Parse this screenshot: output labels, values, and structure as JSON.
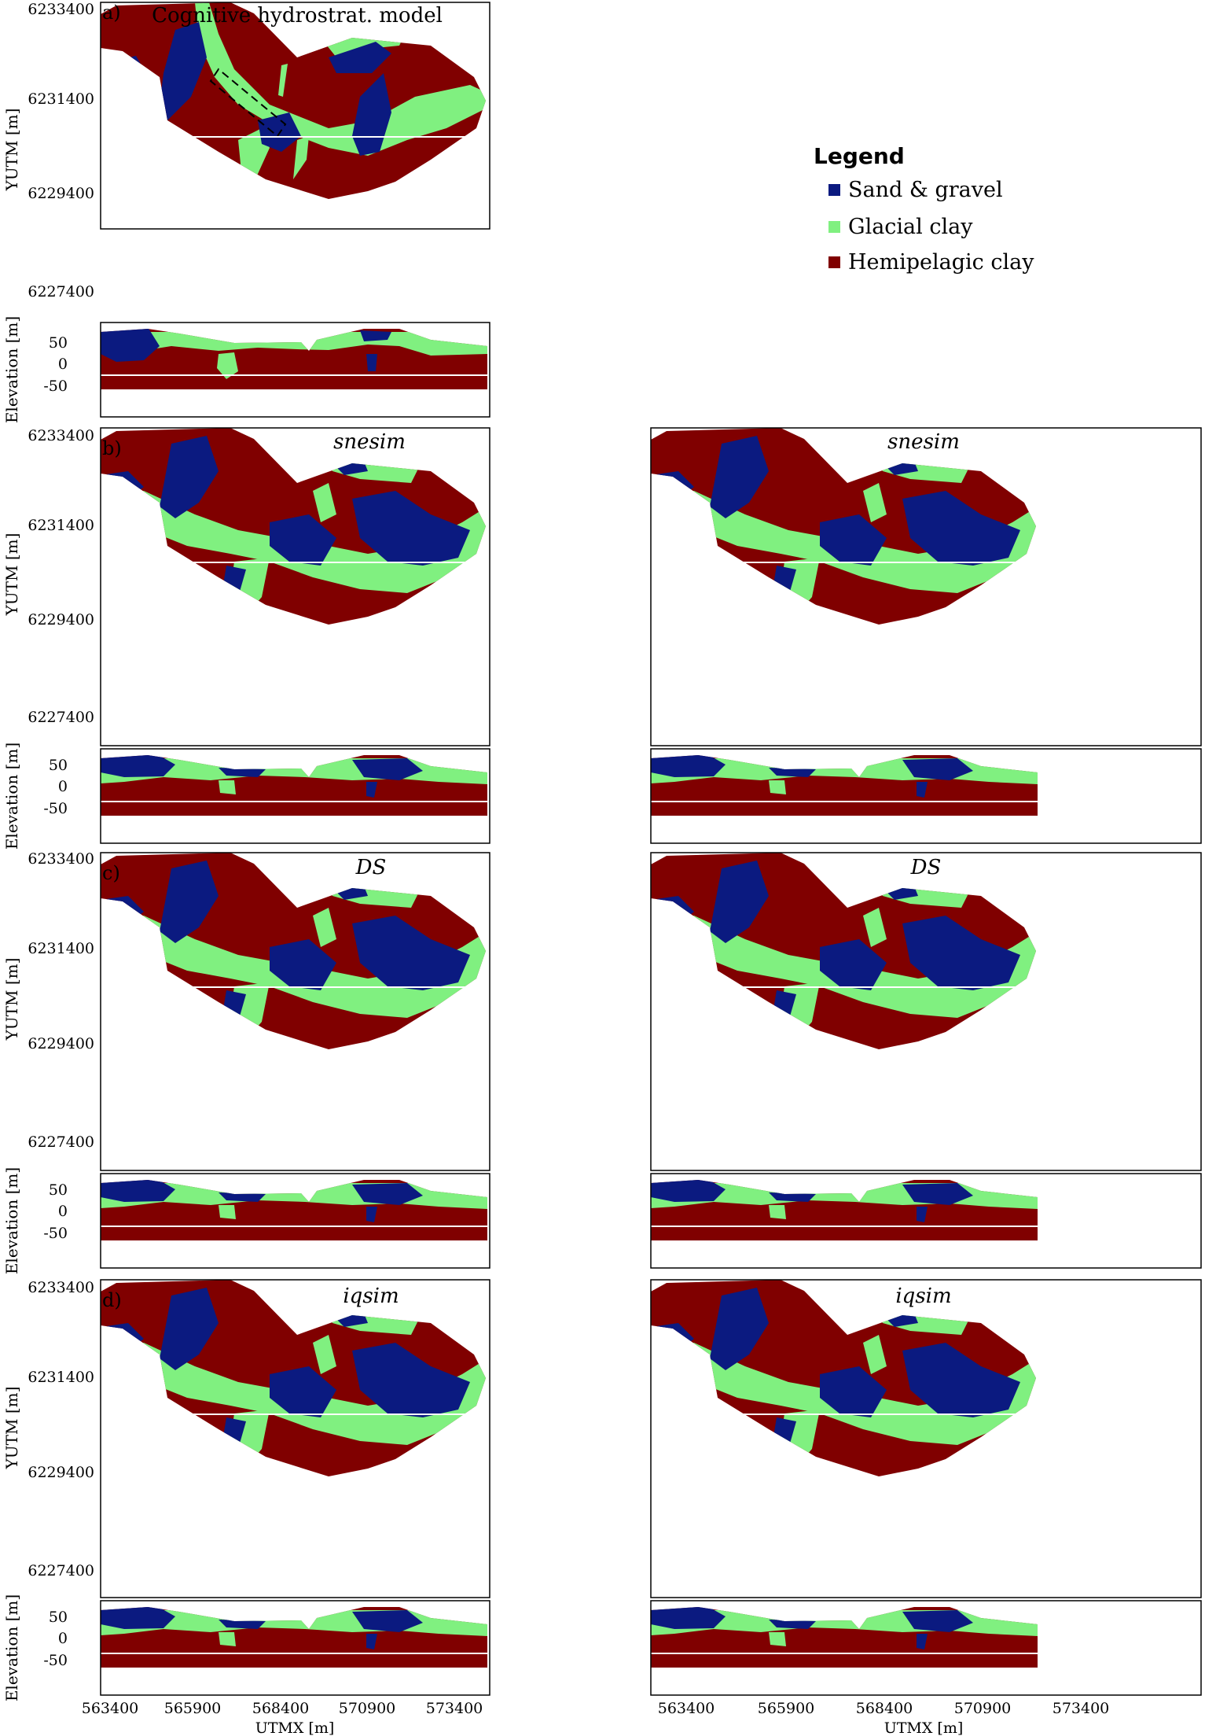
{
  "figure": {
    "legend": {
      "title": "Legend",
      "items": [
        {
          "label": "Sand & gravel",
          "color": "#0b1a80"
        },
        {
          "label": "Glacial clay",
          "color": "#80f080"
        },
        {
          "label": "Hemipelagic clay",
          "color": "#800000"
        }
      ]
    },
    "panels": {
      "a": {
        "letter": "a)",
        "title": "Cognitive hydrostrat. model"
      },
      "b": {
        "letter": "b)",
        "title": "snesim"
      },
      "c": {
        "letter": "c)",
        "title": "DS"
      },
      "d": {
        "letter": "d)",
        "title": "iqsim"
      }
    },
    "axes": {
      "map_ylabel": "YUTM [m]",
      "section_ylabel": "Elevation [m]",
      "xlabel": "UTMX [m]",
      "map_yticks": [
        "6233400",
        "6231400",
        "6229400",
        "6227400"
      ],
      "section_yticks": [
        "50",
        "0",
        "-50"
      ],
      "xticks": [
        "563400",
        "565900",
        "568400",
        "570900",
        "573400"
      ]
    }
  }
}
